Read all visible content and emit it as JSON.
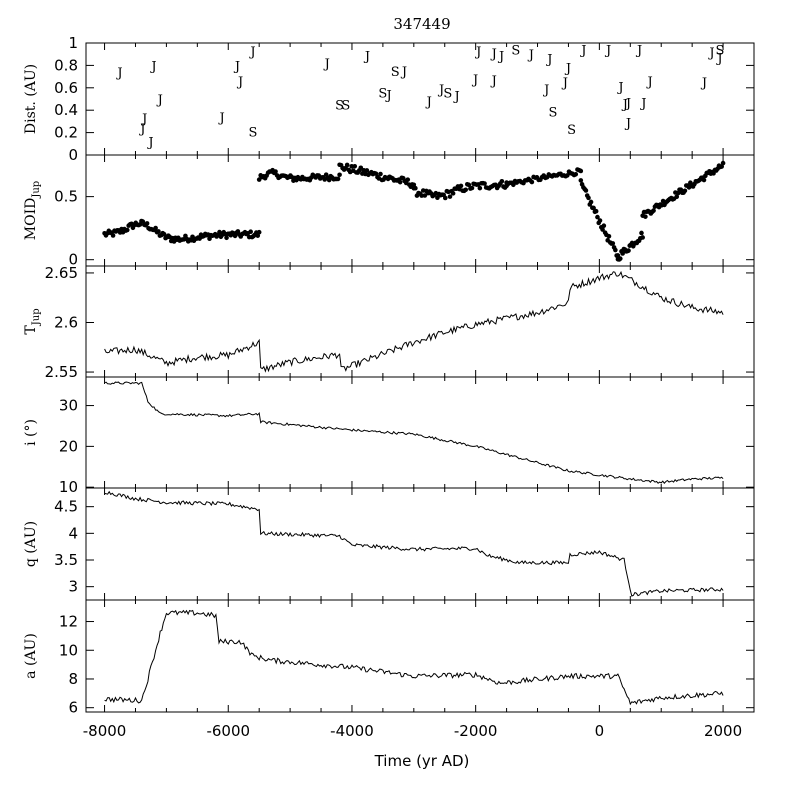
{
  "chart_data": {
    "title": "347449",
    "x_label": "Time (yr AD)",
    "x_range": [
      -8300,
      2500
    ],
    "x_ticks": [
      -8000,
      -6000,
      -4000,
      -2000,
      0,
      2000
    ],
    "panels": [
      {
        "id": "dist",
        "type": "scatter-text",
        "y_label": "Dist. (AU)",
        "y_range": [
          0,
          1
        ],
        "y_ticks": [
          0,
          0.2,
          0.4,
          0.6,
          0.8,
          1
        ],
        "y_tick_labels": [
          "0",
          "0.2",
          "0.4",
          "0.6",
          "0.8",
          "1"
        ],
        "points": [
          {
            "x": -7750,
            "y": 0.74,
            "t": "J"
          },
          {
            "x": -7200,
            "y": 0.8,
            "t": "J"
          },
          {
            "x": -7350,
            "y": 0.33,
            "t": "J"
          },
          {
            "x": -7380,
            "y": 0.24,
            "t": "J"
          },
          {
            "x": -7250,
            "y": 0.12,
            "t": "J"
          },
          {
            "x": -7100,
            "y": 0.5,
            "t": "J"
          },
          {
            "x": -6100,
            "y": 0.34,
            "t": "J"
          },
          {
            "x": -5850,
            "y": 0.8,
            "t": "J"
          },
          {
            "x": -5800,
            "y": 0.66,
            "t": "J"
          },
          {
            "x": -5600,
            "y": 0.93,
            "t": "J"
          },
          {
            "x": -5600,
            "y": 0.21,
            "t": "S"
          },
          {
            "x": -4400,
            "y": 0.82,
            "t": "J"
          },
          {
            "x": -4200,
            "y": 0.45,
            "t": "S"
          },
          {
            "x": -4100,
            "y": 0.45,
            "t": "S"
          },
          {
            "x": -3750,
            "y": 0.89,
            "t": "J"
          },
          {
            "x": -3500,
            "y": 0.56,
            "t": "S"
          },
          {
            "x": -3400,
            "y": 0.54,
            "t": "J"
          },
          {
            "x": -3300,
            "y": 0.75,
            "t": "S"
          },
          {
            "x": -3150,
            "y": 0.75,
            "t": "J"
          },
          {
            "x": -2750,
            "y": 0.48,
            "t": "J"
          },
          {
            "x": -2550,
            "y": 0.59,
            "t": "J"
          },
          {
            "x": -2450,
            "y": 0.56,
            "t": "S"
          },
          {
            "x": -2300,
            "y": 0.53,
            "t": "J"
          },
          {
            "x": -1950,
            "y": 0.93,
            "t": "J"
          },
          {
            "x": -2000,
            "y": 0.68,
            "t": "J"
          },
          {
            "x": -1700,
            "y": 0.91,
            "t": "J"
          },
          {
            "x": -1700,
            "y": 0.67,
            "t": "J"
          },
          {
            "x": -1580,
            "y": 0.89,
            "t": "J"
          },
          {
            "x": -1350,
            "y": 0.94,
            "t": "S"
          },
          {
            "x": -1100,
            "y": 0.9,
            "t": "J"
          },
          {
            "x": -800,
            "y": 0.86,
            "t": "J"
          },
          {
            "x": -850,
            "y": 0.59,
            "t": "J"
          },
          {
            "x": -750,
            "y": 0.39,
            "t": "S"
          },
          {
            "x": -550,
            "y": 0.65,
            "t": "J"
          },
          {
            "x": -500,
            "y": 0.78,
            "t": "J"
          },
          {
            "x": -450,
            "y": 0.23,
            "t": "S"
          },
          {
            "x": -250,
            "y": 0.94,
            "t": "J"
          },
          {
            "x": 150,
            "y": 0.94,
            "t": "J"
          },
          {
            "x": 350,
            "y": 0.61,
            "t": "J"
          },
          {
            "x": 420,
            "y": 0.46,
            "t": "J"
          },
          {
            "x": 470,
            "y": 0.47,
            "t": "J"
          },
          {
            "x": 470,
            "y": 0.29,
            "t": "J"
          },
          {
            "x": 650,
            "y": 0.94,
            "t": "J"
          },
          {
            "x": 720,
            "y": 0.47,
            "t": "J"
          },
          {
            "x": 820,
            "y": 0.66,
            "t": "J"
          },
          {
            "x": 1700,
            "y": 0.65,
            "t": "J"
          },
          {
            "x": 1820,
            "y": 0.92,
            "t": "J"
          },
          {
            "x": 1950,
            "y": 0.94,
            "t": "S"
          },
          {
            "x": 1950,
            "y": 0.87,
            "t": "J"
          }
        ]
      },
      {
        "id": "moid",
        "type": "scatter-dot",
        "y_label": "MOID",
        "y_label_sub": "Jup",
        "y_range": [
          -0.05,
          0.83
        ],
        "y_ticks": [
          0,
          0.5
        ],
        "y_tick_labels": [
          "0",
          "0.5"
        ],
        "series_segments": [
          {
            "x0": -8000,
            "x1": -5500,
            "y0": 0.2,
            "y1": 0.2,
            "waves": [
              [
                -7400,
                0.3,
                300,
                0.1
              ],
              [
                -6900,
                0.12,
                500,
                -0.04
              ]
            ],
            "noise": 0.025,
            "n": 110
          },
          {
            "x0": -5500,
            "x1": -4200,
            "y0": 0.63,
            "y1": 0.66,
            "waves": [
              [
                -5300,
                0.68,
                200,
                0.05
              ]
            ],
            "noise": 0.025,
            "n": 55
          },
          {
            "x0": -4200,
            "x1": -3000,
            "y0": 0.74,
            "y1": 0.6,
            "waves": [],
            "noise": 0.03,
            "n": 50
          },
          {
            "x0": -3000,
            "x1": -1500,
            "y0": 0.55,
            "y1": 0.6,
            "waves": [
              [
                -2600,
                0.52,
                300,
                -0.06
              ]
            ],
            "noise": 0.03,
            "n": 60
          },
          {
            "x0": -1500,
            "x1": -300,
            "y0": 0.6,
            "y1": 0.7,
            "waves": [],
            "noise": 0.02,
            "n": 45
          },
          {
            "x0": -300,
            "x1": 300,
            "y0": 0.6,
            "y1": 0.02,
            "waves": [],
            "noise": 0.03,
            "n": 30
          },
          {
            "x0": 300,
            "x1": 700,
            "y0": 0.02,
            "y1": 0.2,
            "waves": [],
            "noise": 0.03,
            "n": 22
          },
          {
            "x0": 700,
            "x1": 2000,
            "y0": 0.35,
            "y1": 0.75,
            "waves": [],
            "noise": 0.025,
            "n": 60
          }
        ]
      },
      {
        "id": "tjup",
        "type": "line",
        "y_label": "T",
        "y_label_sub": "Jup",
        "y_range": [
          2.545,
          2.657
        ],
        "y_ticks": [
          2.55,
          2.6,
          2.65
        ],
        "y_tick_labels": [
          "2.55",
          "2.6",
          "2.65"
        ],
        "knots": [
          [
            -8000,
            2.57
          ],
          [
            -7500,
            2.573
          ],
          [
            -7000,
            2.559
          ],
          [
            -6500,
            2.565
          ],
          [
            -6000,
            2.567
          ],
          [
            -5500,
            2.58
          ],
          [
            -5480,
            2.552
          ],
          [
            -5000,
            2.56
          ],
          [
            -4200,
            2.568
          ],
          [
            -4180,
            2.552
          ],
          [
            -3500,
            2.568
          ],
          [
            -3000,
            2.58
          ],
          [
            -2500,
            2.59
          ],
          [
            -2000,
            2.598
          ],
          [
            -1000,
            2.61
          ],
          [
            -500,
            2.62
          ],
          [
            -480,
            2.635
          ],
          [
            0,
            2.645
          ],
          [
            300,
            2.65
          ],
          [
            600,
            2.64
          ],
          [
            1000,
            2.625
          ],
          [
            1500,
            2.615
          ],
          [
            2000,
            2.61
          ]
        ],
        "noise": 0.0035
      },
      {
        "id": "incl",
        "type": "line",
        "y_label": "i (°)",
        "y_range": [
          9.8,
          37
        ],
        "y_ticks": [
          10,
          20,
          30
        ],
        "y_tick_labels": [
          "10",
          "20",
          "30"
        ],
        "knots": [
          [
            -8000,
            35.5
          ],
          [
            -7400,
            35.5
          ],
          [
            -7300,
            31
          ],
          [
            -7100,
            28
          ],
          [
            -6000,
            27.5
          ],
          [
            -5500,
            28
          ],
          [
            -5490,
            26
          ],
          [
            -4000,
            24
          ],
          [
            -3000,
            23
          ],
          [
            -2000,
            20
          ],
          [
            -1000,
            16
          ],
          [
            -500,
            14
          ],
          [
            0,
            13
          ],
          [
            500,
            12
          ],
          [
            1000,
            11.2
          ],
          [
            1500,
            12
          ],
          [
            2000,
            12.3
          ]
        ],
        "noise": 0.3
      },
      {
        "id": "q",
        "type": "line",
        "y_label": "q (AU)",
        "y_range": [
          2.75,
          4.85
        ],
        "y_ticks": [
          3,
          3.5,
          4,
          4.5
        ],
        "y_tick_labels": [
          "3",
          "3.5",
          "4",
          "4.5"
        ],
        "knots": [
          [
            -8000,
            4.78
          ],
          [
            -7500,
            4.65
          ],
          [
            -7000,
            4.58
          ],
          [
            -6000,
            4.55
          ],
          [
            -5500,
            4.45
          ],
          [
            -5480,
            4.0
          ],
          [
            -4200,
            3.95
          ],
          [
            -4000,
            3.78
          ],
          [
            -3000,
            3.7
          ],
          [
            -2000,
            3.72
          ],
          [
            -1800,
            3.58
          ],
          [
            -1300,
            3.45
          ],
          [
            -500,
            3.45
          ],
          [
            -480,
            3.6
          ],
          [
            0,
            3.65
          ],
          [
            400,
            3.5
          ],
          [
            520,
            2.85
          ],
          [
            1000,
            2.92
          ],
          [
            2000,
            2.95
          ]
        ],
        "noise": 0.035
      },
      {
        "id": "a",
        "type": "line",
        "y_label": "a (AU)",
        "y_range": [
          5.7,
          13.5
        ],
        "y_ticks": [
          6,
          8,
          10,
          12
        ],
        "y_tick_labels": [
          "6",
          "8",
          "10",
          "12"
        ],
        "knots": [
          [
            -8000,
            6.6
          ],
          [
            -7400,
            6.5
          ],
          [
            -7300,
            8
          ],
          [
            -7100,
            11.2
          ],
          [
            -7000,
            12.6
          ],
          [
            -6500,
            12.6
          ],
          [
            -6200,
            12.4
          ],
          [
            -6150,
            10.6
          ],
          [
            -5800,
            10.6
          ],
          [
            -5600,
            9.6
          ],
          [
            -5300,
            9.3
          ],
          [
            -4000,
            8.8
          ],
          [
            -3000,
            8.2
          ],
          [
            -2000,
            8.3
          ],
          [
            -1600,
            7.7
          ],
          [
            -500,
            8.2
          ],
          [
            300,
            8.2
          ],
          [
            500,
            6.3
          ],
          [
            1000,
            6.7
          ],
          [
            2000,
            7.0
          ]
        ],
        "noise": 0.18
      }
    ]
  }
}
